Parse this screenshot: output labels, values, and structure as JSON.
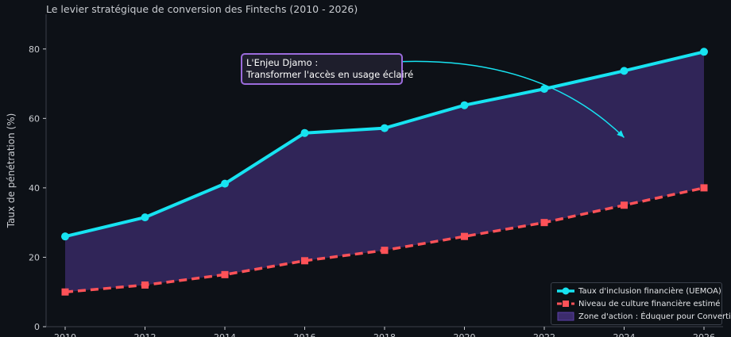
{
  "chart_data": {
    "type": "line",
    "title": "Le levier stratégique de conversion des Fintechs (2010 - 2026)",
    "xlabel": "",
    "ylabel": "Taux de pénétration (%)",
    "x": [
      2010,
      2012,
      2014,
      2016,
      2018,
      2020,
      2022,
      2024,
      2026
    ],
    "xlim": [
      2010,
      2026
    ],
    "ylim": [
      0,
      90
    ],
    "yticks": [
      0,
      20,
      40,
      60,
      80
    ],
    "xtick_labels": [
      "2010",
      "2012",
      "2014",
      "2016",
      "2018",
      "2020",
      "2022",
      "2024",
      "2026"
    ],
    "grid": false,
    "legend_position": "bottom-right",
    "series": [
      {
        "name": "Taux d'inclusion financière (UEMOA)",
        "color": "#17e3f1",
        "values": [
          26,
          31.5,
          41.2,
          55.8,
          57.2,
          63.8,
          68.5,
          73.7,
          79.2
        ]
      },
      {
        "name": "Niveau de culture financière estimé",
        "color": "#ff5258",
        "values": [
          10,
          12,
          15,
          19,
          22,
          26,
          30,
          35,
          40
        ]
      }
    ],
    "fill_between": {
      "name": "Zone d'action : Éduquer pour Convertir",
      "color": "#5b3fa8"
    },
    "annotation": {
      "lines": [
        "L'Enjeu Djamo :",
        "Transformer l'accès en usage éclairé"
      ],
      "arrow_target": {
        "x": 2024,
        "y": 54.5
      },
      "border_color": "#9b6bdc",
      "arrow_color": "#17e3f1"
    }
  }
}
